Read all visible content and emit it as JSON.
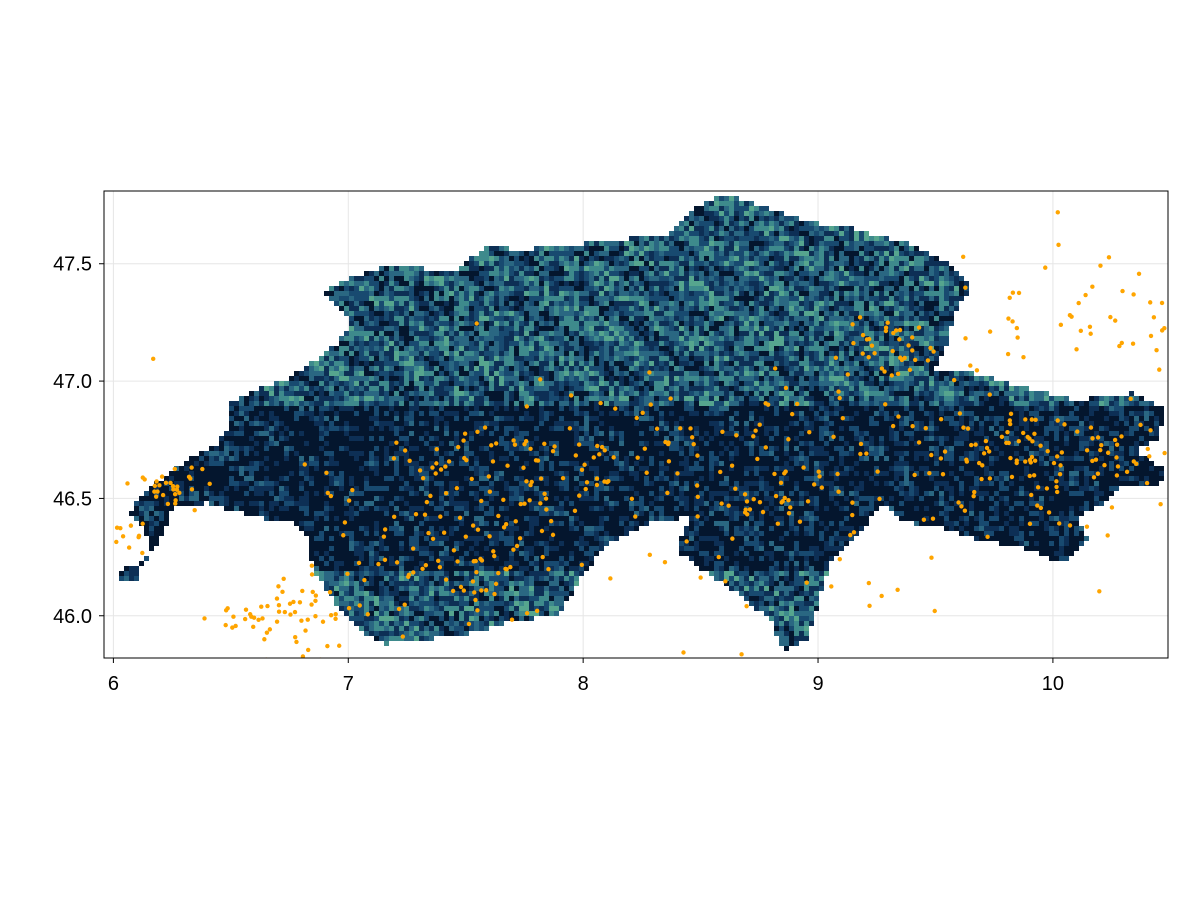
{
  "chart_data": {
    "type": "map",
    "title": "",
    "xlabel": "",
    "ylabel": "",
    "xlim": [
      5.96,
      10.49
    ],
    "ylim": [
      45.82,
      47.81
    ],
    "grid": true,
    "legend": "none",
    "x_ticks": [
      6,
      7,
      8,
      9,
      10
    ],
    "x_tick_labels": [
      "6",
      "7",
      "8",
      "9",
      "10"
    ],
    "y_ticks": [
      46.0,
      46.5,
      47.0,
      47.5
    ],
    "y_tick_labels": [
      "46.0",
      "46.5",
      "47.0",
      "47.5"
    ],
    "raster": {
      "description_colormap": "dark-navy-to-teal",
      "colors": [
        "#04162e",
        "#0d2f55",
        "#184a70",
        "#2a6782",
        "#3e8a8c",
        "#56a58e"
      ]
    },
    "points_color": "#ffa500",
    "point_clusters": [
      {
        "center": [
          6.25,
          46.55
        ],
        "spread": [
          0.08,
          0.05
        ],
        "count": 30
      },
      {
        "center": [
          6.05,
          46.36
        ],
        "spread": [
          0.05,
          0.04
        ],
        "count": 10
      },
      {
        "center": [
          6.5,
          45.99
        ],
        "spread": [
          0.07,
          0.03
        ],
        "count": 14
      },
      {
        "center": [
          6.8,
          46.0
        ],
        "spread": [
          0.1,
          0.12
        ],
        "count": 45
      },
      {
        "center": [
          7.3,
          46.3
        ],
        "spread": [
          0.25,
          0.18
        ],
        "count": 60
      },
      {
        "center": [
          7.6,
          46.2
        ],
        "spread": [
          0.1,
          0.08
        ],
        "count": 20
      },
      {
        "center": [
          7.4,
          46.65
        ],
        "spread": [
          0.12,
          0.05
        ],
        "count": 18
      },
      {
        "center": [
          7.9,
          46.6
        ],
        "spread": [
          0.25,
          0.15
        ],
        "count": 55
      },
      {
        "center": [
          8.5,
          46.75
        ],
        "spread": [
          0.3,
          0.1
        ],
        "count": 40
      },
      {
        "center": [
          8.8,
          46.5
        ],
        "spread": [
          0.2,
          0.06
        ],
        "count": 30
      },
      {
        "center": [
          9.35,
          47.15
        ],
        "spread": [
          0.12,
          0.05
        ],
        "count": 35
      },
      {
        "center": [
          9.3,
          46.8
        ],
        "spread": [
          0.3,
          0.15
        ],
        "count": 35
      },
      {
        "center": [
          9.8,
          46.75
        ],
        "spread": [
          0.12,
          0.07
        ],
        "count": 40
      },
      {
        "center": [
          9.9,
          46.5
        ],
        "spread": [
          0.25,
          0.12
        ],
        "count": 35
      },
      {
        "center": [
          10.3,
          46.7
        ],
        "spread": [
          0.15,
          0.1
        ],
        "count": 25
      },
      {
        "center": [
          10.2,
          47.3
        ],
        "spread": [
          0.25,
          0.15
        ],
        "count": 40
      },
      {
        "center": [
          9.9,
          47.25
        ],
        "spread": [
          0.15,
          0.1
        ],
        "count": 12
      },
      {
        "center": [
          8.5,
          46.4
        ],
        "spread": [
          0.8,
          0.35
        ],
        "count": 35
      },
      {
        "center": [
          9.5,
          46.05
        ],
        "spread": [
          0.4,
          0.1
        ],
        "count": 10
      }
    ]
  }
}
